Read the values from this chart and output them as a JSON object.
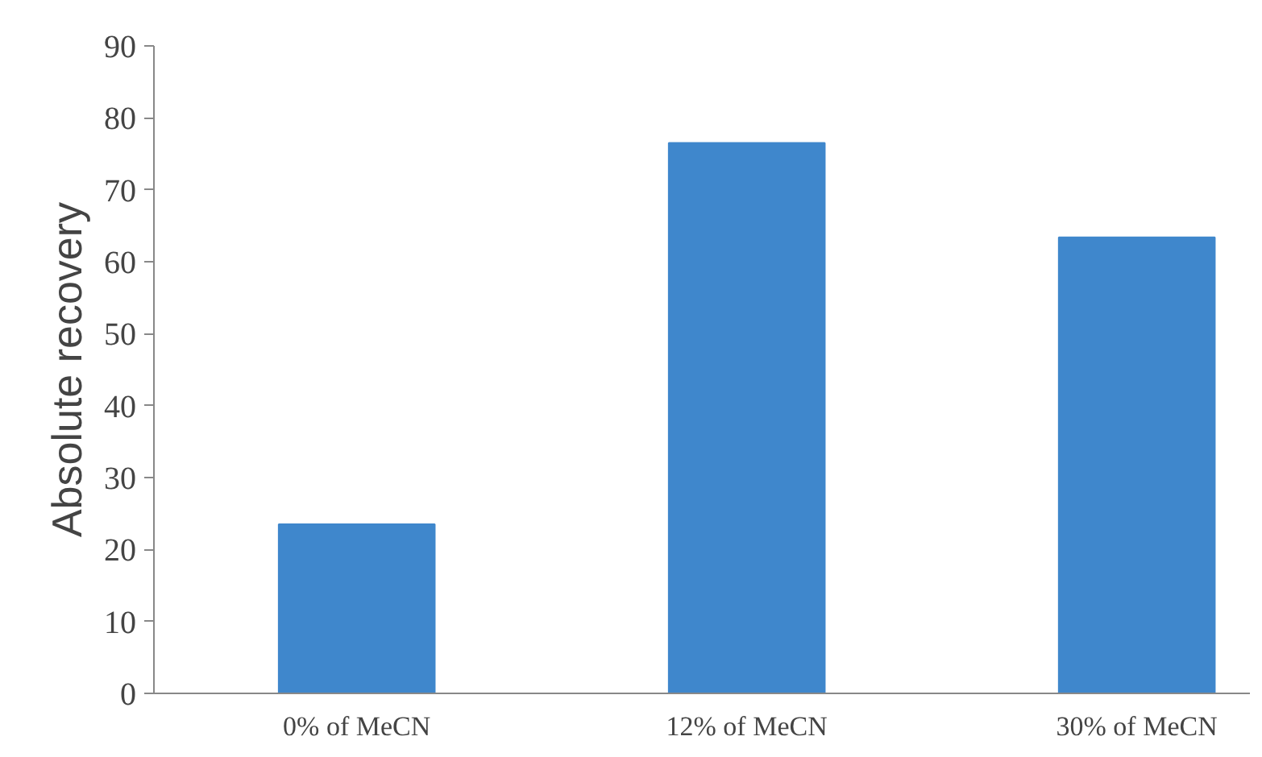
{
  "chart_data": {
    "type": "bar",
    "ylabel": "Absolute recovery",
    "categories": [
      "0% of MeCN",
      "12% of MeCN",
      "30% of MeCN"
    ],
    "values": [
      23.5,
      76.5,
      63.4
    ],
    "color": "#3f87cc",
    "ylim": [
      0,
      90
    ],
    "yticks": [
      0,
      10,
      20,
      30,
      40,
      50,
      60,
      70,
      80,
      90
    ],
    "grid": false
  }
}
